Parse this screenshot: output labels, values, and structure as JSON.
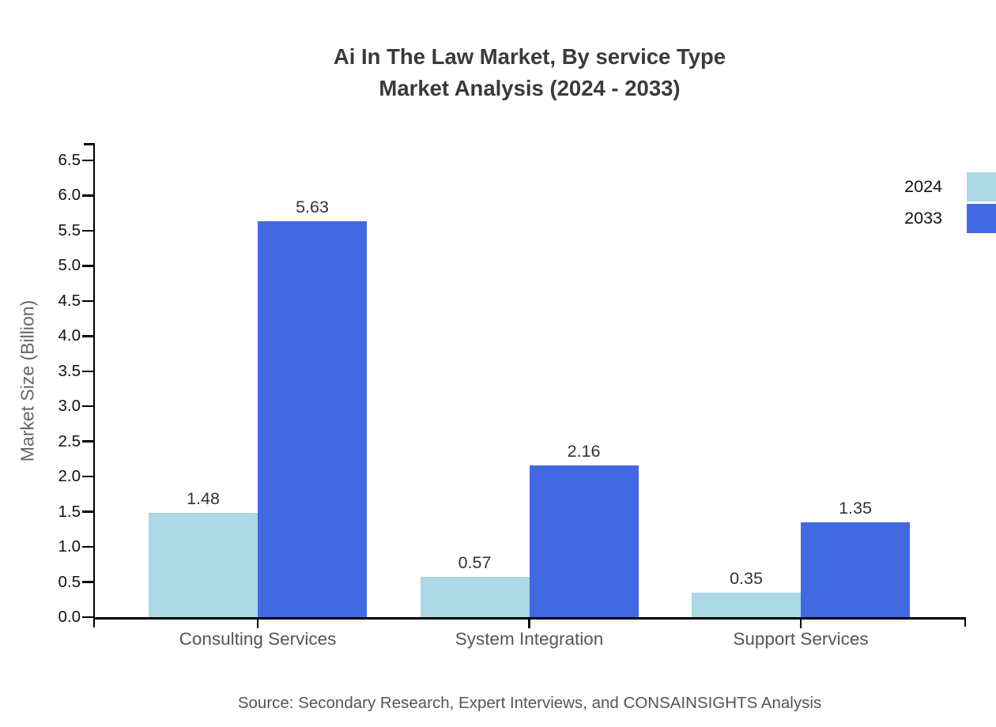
{
  "chart_data": {
    "type": "bar",
    "title_line1": "Ai In The Law Market, By service Type",
    "title_line2": "Market Analysis (2024 - 2033)",
    "categories": [
      "Consulting Services",
      "System Integration",
      "Support Services"
    ],
    "series": [
      {
        "name": "2024",
        "color": "#ADD8E6",
        "values": [
          1.48,
          0.57,
          0.35
        ]
      },
      {
        "name": "2033",
        "color": "#4169E1",
        "values": [
          5.63,
          2.16,
          1.35
        ]
      }
    ],
    "xlabel": "",
    "ylabel": "Market Size (Billion)",
    "ylim": [
      0,
      6.5
    ],
    "ytick_step": 0.5,
    "ytick_decimals": 1,
    "value_label_decimals": 2,
    "grid": false,
    "legend_position": "top-right"
  },
  "source_note": "Source: Secondary Research, Expert Interviews, and CONSAINSIGHTS Analysis"
}
